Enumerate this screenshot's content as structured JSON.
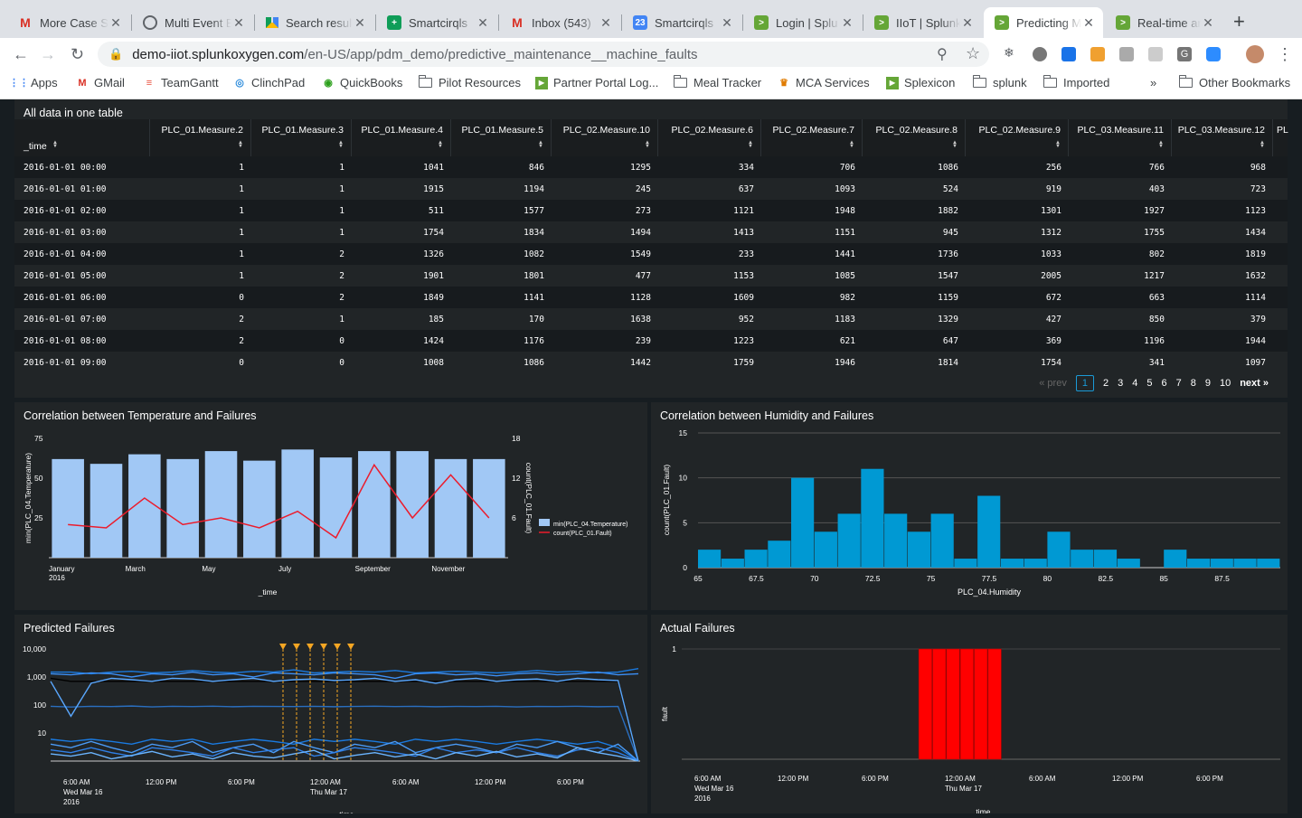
{
  "browser": {
    "tabs": [
      {
        "title": "More Case S",
        "icon": "gmail-icon",
        "color": "#d93025",
        "glyph": "M"
      },
      {
        "title": "Multi Event E",
        "icon": "globe-icon",
        "color": "#5f6368",
        "glyph": ""
      },
      {
        "title": "Search resul",
        "icon": "drive-icon",
        "color": "#fbbc04",
        "glyph": ""
      },
      {
        "title": "Smartcirqls",
        "icon": "sheets-icon",
        "color": "#0f9d58",
        "glyph": "+"
      },
      {
        "title": "Inbox (543)",
        "icon": "gmail-icon",
        "color": "#d93025",
        "glyph": "M"
      },
      {
        "title": "Smartcirqls",
        "icon": "calendar-icon",
        "color": "#4285f4",
        "glyph": "23"
      },
      {
        "title": "Login | Splu",
        "icon": "splunk-icon",
        "color": "#65a637",
        "glyph": ">"
      },
      {
        "title": "IIoT | Splunk",
        "icon": "splunk-icon",
        "color": "#65a637",
        "glyph": ">"
      },
      {
        "title": "Predicting M",
        "icon": "splunk-icon",
        "color": "#65a637",
        "glyph": ">",
        "active": true
      },
      {
        "title": "Real-time ar",
        "icon": "splunk-icon",
        "color": "#65a637",
        "glyph": ">"
      }
    ],
    "url_host": "demo-iiot.splunkoxygen.com",
    "url_path": "/en-US/app/pdm_demo/predictive_maintenance__machine_faults",
    "bookmarks": [
      {
        "label": "Apps",
        "type": "apps"
      },
      {
        "label": "GMail",
        "type": "gmail"
      },
      {
        "label": "TeamGantt",
        "type": "teamgantt"
      },
      {
        "label": "ClinchPad",
        "type": "clinchpad"
      },
      {
        "label": "QuickBooks",
        "type": "quickbooks"
      },
      {
        "label": "Pilot Resources",
        "type": "folder"
      },
      {
        "label": "Partner Portal Log...",
        "type": "splunk"
      },
      {
        "label": "Meal Tracker",
        "type": "folder"
      },
      {
        "label": "MCA Services",
        "type": "mca"
      },
      {
        "label": "Splexicon",
        "type": "splunk"
      },
      {
        "label": "splunk",
        "type": "folder"
      },
      {
        "label": "Imported",
        "type": "folder"
      }
    ],
    "more_bookmarks": "»",
    "other_bookmarks": "Other Bookmarks"
  },
  "table_panel": {
    "title": "All data in one table",
    "columns": [
      "_time",
      "PLC_01.Measure.2",
      "PLC_01.Measure.3",
      "PLC_01.Measure.4",
      "PLC_01.Measure.5",
      "PLC_02.Measure.10",
      "PLC_02.Measure.6",
      "PLC_02.Measure.7",
      "PLC_02.Measure.8",
      "PLC_02.Measure.9",
      "PLC_03.Measure.11",
      "PLC_03.Measure.12",
      "PL"
    ],
    "rows": [
      [
        "2016-01-01 00:00",
        "1",
        "1",
        "1041",
        "846",
        "1295",
        "334",
        "706",
        "1086",
        "256",
        "766",
        "968"
      ],
      [
        "2016-01-01 01:00",
        "1",
        "1",
        "1915",
        "1194",
        "245",
        "637",
        "1093",
        "524",
        "919",
        "403",
        "723"
      ],
      [
        "2016-01-01 02:00",
        "1",
        "1",
        "511",
        "1577",
        "273",
        "1121",
        "1948",
        "1882",
        "1301",
        "1927",
        "1123"
      ],
      [
        "2016-01-01 03:00",
        "1",
        "1",
        "1754",
        "1834",
        "1494",
        "1413",
        "1151",
        "945",
        "1312",
        "1755",
        "1434"
      ],
      [
        "2016-01-01 04:00",
        "1",
        "2",
        "1326",
        "1082",
        "1549",
        "233",
        "1441",
        "1736",
        "1033",
        "802",
        "1819"
      ],
      [
        "2016-01-01 05:00",
        "1",
        "2",
        "1901",
        "1801",
        "477",
        "1153",
        "1085",
        "1547",
        "2005",
        "1217",
        "1632"
      ],
      [
        "2016-01-01 06:00",
        "0",
        "2",
        "1849",
        "1141",
        "1128",
        "1609",
        "982",
        "1159",
        "672",
        "663",
        "1114"
      ],
      [
        "2016-01-01 07:00",
        "2",
        "1",
        "185",
        "170",
        "1638",
        "952",
        "1183",
        "1329",
        "427",
        "850",
        "379"
      ],
      [
        "2016-01-01 08:00",
        "2",
        "0",
        "1424",
        "1176",
        "239",
        "1223",
        "621",
        "647",
        "369",
        "1196",
        "1944"
      ],
      [
        "2016-01-01 09:00",
        "0",
        "0",
        "1008",
        "1086",
        "1442",
        "1759",
        "1946",
        "1814",
        "1754",
        "341",
        "1097"
      ]
    ],
    "pager": {
      "prev": "« prev",
      "pages": [
        "1",
        "2",
        "3",
        "4",
        "5",
        "6",
        "7",
        "8",
        "9",
        "10"
      ],
      "current": "1",
      "next": "next »"
    }
  },
  "chart_data": [
    {
      "type": "bar",
      "title": "Correlation between Temperature and Failures",
      "categories": [
        "January 2016",
        "February",
        "March",
        "April",
        "May",
        "June",
        "July",
        "August",
        "September",
        "October",
        "November",
        "December"
      ],
      "x_tick_labels": [
        {
          "i": 0,
          "l1": "January",
          "l2": "2016"
        },
        {
          "i": 2,
          "l1": "March",
          "l2": ""
        },
        {
          "i": 4,
          "l1": "May",
          "l2": ""
        },
        {
          "i": 6,
          "l1": "July",
          "l2": ""
        },
        {
          "i": 8,
          "l1": "September",
          "l2": ""
        },
        {
          "i": 10,
          "l1": "November",
          "l2": ""
        }
      ],
      "series": [
        {
          "name": "min(PLC_04.Temperature)",
          "kind": "bar",
          "axis": "left",
          "color": "#a1c8f5",
          "values": [
            62,
            59,
            65,
            62,
            67,
            61,
            68,
            63,
            67,
            67,
            62,
            62
          ]
        },
        {
          "name": "count(PLC_01.Fault)",
          "kind": "line",
          "axis": "right",
          "color": "#ec1c2c",
          "values": [
            5,
            4.5,
            9,
            5,
            6,
            4.5,
            7,
            3,
            14,
            6,
            12.5,
            6
          ]
        }
      ],
      "xlabel": "_time",
      "ylabel": "min(PLC_04.Temperature)",
      "y2label": "count(PLC_01.Fault)",
      "ylim": [
        0,
        75
      ],
      "yticks": [
        25,
        50,
        75
      ],
      "y2lim": [
        0,
        18
      ],
      "y2ticks": [
        6,
        12,
        18
      ],
      "legend": "right"
    },
    {
      "type": "bar",
      "title": "Correlation between Humidity and Failures",
      "x": [
        65,
        66,
        67,
        68,
        69,
        70,
        71,
        72,
        73,
        74,
        75,
        76,
        77,
        78,
        79,
        80,
        81,
        82,
        83,
        84,
        85,
        86,
        87,
        88,
        89
      ],
      "bin_width": 1,
      "values": [
        2,
        1,
        2,
        3,
        10,
        4,
        6,
        11,
        6,
        4,
        6,
        1,
        8,
        1,
        1,
        4,
        2,
        2,
        1,
        0,
        2,
        1,
        1,
        1,
        1
      ],
      "color": "#0099d3",
      "xlabel": "PLC_04.Humidity",
      "ylabel": "count(PLC_01.Fault)",
      "xlim": [
        65,
        90
      ],
      "xticks": [
        "65",
        "67.5",
        "70",
        "72.5",
        "75",
        "77.5",
        "80",
        "82.5",
        "85",
        "87.5"
      ],
      "ylim": [
        0,
        15
      ],
      "yticks": [
        0,
        5,
        10,
        15
      ],
      "grid": true
    },
    {
      "type": "line",
      "title": "Predicted Failures",
      "y_scale": "log",
      "ylim": [
        1,
        10000
      ],
      "yticks": [
        "10",
        "100",
        "1,000",
        "10,000"
      ],
      "x_tick_labels": [
        [
          "6:00 AM",
          "Wed Mar 16",
          "2016"
        ],
        [
          "12:00 PM",
          "",
          ""
        ],
        [
          "6:00 PM",
          "",
          ""
        ],
        [
          "12:00 AM",
          "Thu Mar 17",
          ""
        ],
        [
          "6:00 AM",
          "",
          ""
        ],
        [
          "12:00 PM",
          "",
          ""
        ],
        [
          "6:00 PM",
          "",
          ""
        ]
      ],
      "xlabel": "_time",
      "annotations": {
        "type": "event-marker",
        "color": "#f5a623",
        "count": 6
      },
      "series": [
        {
          "color": "#1a7ae0",
          "values": [
            1500,
            1500,
            1300,
            1500,
            1600,
            1400,
            1500,
            1700,
            1500,
            1400,
            1600,
            1500,
            1800,
            1400,
            1500,
            1600,
            1500,
            1700,
            1400,
            1500,
            1600,
            1500,
            1400,
            1500,
            1700,
            1500,
            1600,
            1400,
            1500,
            2000
          ]
        },
        {
          "color": "#3c8ff5",
          "values": [
            1300,
            1200,
            1400,
            1300,
            1000,
            1300,
            1200,
            1500,
            1200,
            1300,
            1000,
            1400,
            1300,
            1200,
            1400,
            1300,
            1200,
            900,
            1300,
            1400,
            1200,
            1300,
            1100,
            1300,
            1400,
            1200,
            1300,
            1500,
            1200,
            1300
          ]
        },
        {
          "color": "#000000",
          "values": [
            900,
            700,
            700,
            700,
            700,
            700,
            700,
            700,
            700,
            700,
            700,
            700,
            700,
            700,
            700,
            700,
            700,
            700,
            700,
            700,
            700,
            700,
            700,
            700,
            700,
            700,
            700,
            700,
            700,
            1
          ]
        },
        {
          "color": "#2a6fc0",
          "values": [
            90,
            85,
            90,
            88,
            92,
            86,
            90,
            88,
            91,
            87,
            90,
            89,
            88,
            90,
            87,
            89,
            91,
            88,
            90,
            87,
            89,
            88,
            90,
            86,
            89,
            88,
            90,
            87,
            89,
            1
          ]
        },
        {
          "color": "#5aa8ff",
          "values": [
            700,
            40,
            600,
            900,
            800,
            700,
            900,
            850,
            700,
            800,
            900,
            700,
            800,
            850,
            750,
            800,
            900,
            700,
            800,
            600,
            800,
            900,
            700,
            800,
            850,
            700,
            900,
            800,
            750,
            1
          ]
        },
        {
          "color": "#1a7ae0",
          "values": [
            6,
            5,
            6,
            5,
            4,
            6,
            5,
            6,
            4,
            5,
            6,
            5,
            4,
            6,
            5,
            6,
            5,
            4,
            6,
            5,
            6,
            5,
            4,
            5,
            6,
            5,
            4,
            5,
            3,
            1
          ]
        },
        {
          "color": "#4a9af5",
          "values": [
            4,
            3,
            5,
            3,
            2,
            4,
            3,
            5,
            2,
            3,
            4,
            2,
            5,
            3,
            2,
            4,
            3,
            5,
            2,
            3,
            4,
            3,
            2,
            4,
            3,
            5,
            3,
            2,
            4,
            1
          ]
        },
        {
          "color": "#2f80e8",
          "values": [
            2.5,
            2,
            3,
            2,
            1.5,
            3,
            2.5,
            2,
            1.5,
            3,
            2,
            2.5,
            3,
            1.5,
            2,
            3,
            2.5,
            2,
            1.5,
            3,
            2,
            2.5,
            2,
            3,
            2,
            1.5,
            2.5,
            3,
            2,
            1
          ]
        },
        {
          "color": "#6ab4ff",
          "values": [
            1.8,
            1.5,
            2,
            1.2,
            1.6,
            2.2,
            1.4,
            1.8,
            1.2,
            2,
            1.5,
            1.3,
            1.8,
            2.4,
            1.2,
            1.6,
            2,
            1.4,
            1.8,
            1.2,
            2,
            1.5,
            2.2,
            1.4,
            1.8,
            1.3,
            3,
            2,
            1.5,
            1
          ]
        }
      ]
    },
    {
      "type": "bar",
      "title": "Actual Failures",
      "ylabel": "fault",
      "xlabel": "_time",
      "ylim": [
        0,
        1
      ],
      "yticks": [
        "1"
      ],
      "x_tick_labels": [
        [
          "6:00 AM",
          "Wed Mar 16",
          "2016"
        ],
        [
          "12:00 PM",
          "",
          ""
        ],
        [
          "6:00 PM",
          "",
          ""
        ],
        [
          "12:00 AM",
          "Thu Mar 17",
          ""
        ],
        [
          "6:00 AM",
          "",
          ""
        ],
        [
          "12:00 PM",
          "",
          ""
        ],
        [
          "6:00 PM",
          "",
          ""
        ]
      ],
      "bars": [
        {
          "hour": 22,
          "value": 1
        },
        {
          "hour": 23,
          "value": 1
        },
        {
          "hour": 24,
          "value": 1
        },
        {
          "hour": 25,
          "value": 1
        },
        {
          "hour": 26,
          "value": 1
        },
        {
          "hour": 27,
          "value": 1
        }
      ],
      "color": "#ff0000"
    }
  ]
}
